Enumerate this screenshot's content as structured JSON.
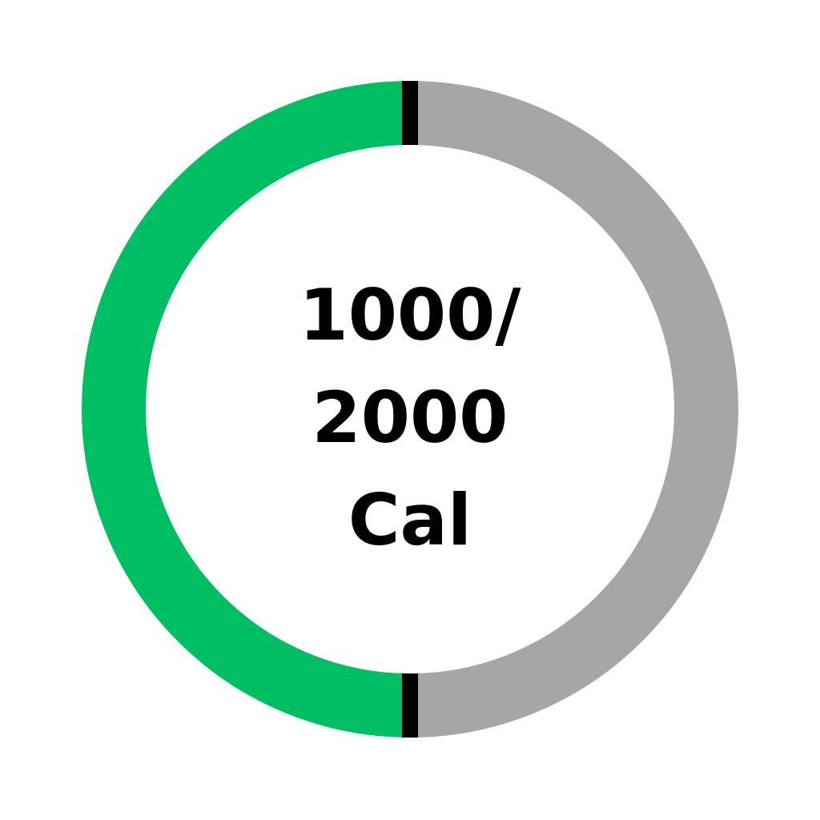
{
  "progress": {
    "consumed": 1000,
    "goal": 2000,
    "fraction": 0.5,
    "label_line1": "1000/",
    "label_line2": "2000",
    "unit": "Cal"
  },
  "colors": {
    "consumed": "#00BF63",
    "remaining": "#A6A6A6",
    "marker": "#000000",
    "background": "#FFFFFF",
    "text": "#000000"
  }
}
